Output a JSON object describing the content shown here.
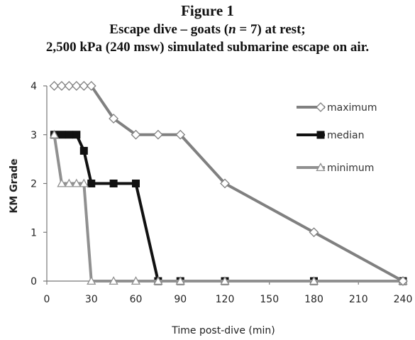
{
  "figure": {
    "title": "Figure 1",
    "subtitle_line1": "Escape dive – goats (n = 7) at rest;",
    "subtitle_line2": "2,500 kPa (240 msw) simulated submarine escape on air."
  },
  "chart_data": {
    "type": "line",
    "xlabel": "Time post-dive (min)",
    "ylabel": "KM Grade",
    "xlim": [
      0,
      240
    ],
    "ylim": [
      0,
      4
    ],
    "xticks": [
      0,
      30,
      60,
      90,
      120,
      150,
      180,
      210,
      240
    ],
    "yticks": [
      0,
      1,
      2,
      3,
      4
    ],
    "grid": false,
    "legend_position": "top-right",
    "series": [
      {
        "name": "maximum",
        "color": "#808080",
        "marker": "diamond-open",
        "points": [
          [
            5,
            4
          ],
          [
            10,
            4
          ],
          [
            15,
            4
          ],
          [
            20,
            4
          ],
          [
            25,
            4
          ],
          [
            30,
            4
          ],
          [
            45,
            3.33
          ],
          [
            60,
            3
          ],
          [
            75,
            3
          ],
          [
            90,
            3
          ],
          [
            120,
            2
          ],
          [
            180,
            1
          ],
          [
            240,
            0
          ]
        ]
      },
      {
        "name": "median",
        "color": "#111111",
        "marker": "square-filled",
        "points": [
          [
            5,
            3
          ],
          [
            10,
            3
          ],
          [
            15,
            3
          ],
          [
            20,
            3
          ],
          [
            25,
            2.67
          ],
          [
            30,
            2
          ],
          [
            45,
            2
          ],
          [
            60,
            2
          ],
          [
            75,
            0
          ],
          [
            90,
            0
          ],
          [
            120,
            0
          ],
          [
            180,
            0
          ],
          [
            240,
            0
          ]
        ]
      },
      {
        "name": "minimum",
        "color": "#909090",
        "marker": "triangle-open",
        "points": [
          [
            5,
            3
          ],
          [
            10,
            2
          ],
          [
            15,
            2
          ],
          [
            20,
            2
          ],
          [
            25,
            2
          ],
          [
            30,
            0
          ],
          [
            45,
            0
          ],
          [
            60,
            0
          ],
          [
            75,
            0
          ],
          [
            90,
            0
          ],
          [
            120,
            0
          ],
          [
            180,
            0
          ],
          [
            240,
            0
          ]
        ]
      }
    ]
  }
}
